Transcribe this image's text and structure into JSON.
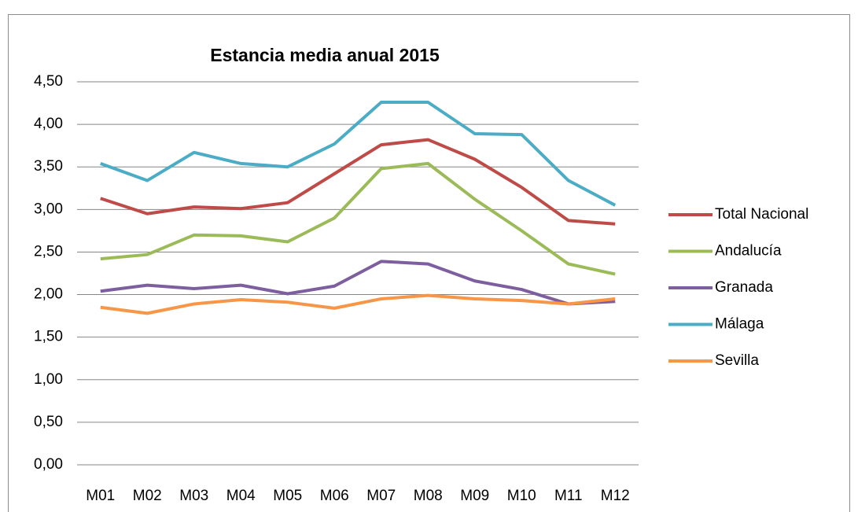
{
  "chart_data": {
    "type": "line",
    "title": "Estancia media anual 2015",
    "categories": [
      "M01",
      "M02",
      "M03",
      "M04",
      "M05",
      "M06",
      "M07",
      "M08",
      "M09",
      "M10",
      "M11",
      "M12"
    ],
    "series": [
      {
        "name": "Total Nacional",
        "color": "#be4b48",
        "values": [
          3.13,
          2.95,
          3.03,
          3.01,
          3.08,
          3.42,
          3.76,
          3.82,
          3.59,
          3.26,
          2.87,
          2.83
        ]
      },
      {
        "name": "Andalucía",
        "color": "#9bbb59",
        "values": [
          2.42,
          2.47,
          2.7,
          2.69,
          2.62,
          2.9,
          3.48,
          3.54,
          3.12,
          2.75,
          2.36,
          2.24
        ]
      },
      {
        "name": "Granada",
        "color": "#7d5fa0",
        "values": [
          2.04,
          2.11,
          2.07,
          2.11,
          2.01,
          2.1,
          2.39,
          2.36,
          2.16,
          2.06,
          1.89,
          1.92
        ]
      },
      {
        "name": "Málaga",
        "color": "#4bacc6",
        "values": [
          3.54,
          3.34,
          3.67,
          3.54,
          3.5,
          3.77,
          4.26,
          4.26,
          3.89,
          3.88,
          3.34,
          3.05
        ]
      },
      {
        "name": "Sevilla",
        "color": "#f79646",
        "values": [
          1.85,
          1.78,
          1.89,
          1.94,
          1.91,
          1.84,
          1.95,
          1.99,
          1.95,
          1.93,
          1.89,
          1.95
        ]
      }
    ],
    "ylim": [
      0,
      4.5
    ],
    "yticks": [
      {
        "value": 0,
        "label": "0,00"
      },
      {
        "value": 0.5,
        "label": "0,50"
      },
      {
        "value": 1,
        "label": "1,00"
      },
      {
        "value": 1.5,
        "label": "1,50"
      },
      {
        "value": 2,
        "label": "2,00"
      },
      {
        "value": 2.5,
        "label": "2,50"
      },
      {
        "value": 3,
        "label": "3,00"
      },
      {
        "value": 3.5,
        "label": "3,50"
      },
      {
        "value": 4,
        "label": "4,00"
      },
      {
        "value": 4.5,
        "label": "4,50"
      }
    ],
    "grid": true,
    "legend": "right"
  }
}
